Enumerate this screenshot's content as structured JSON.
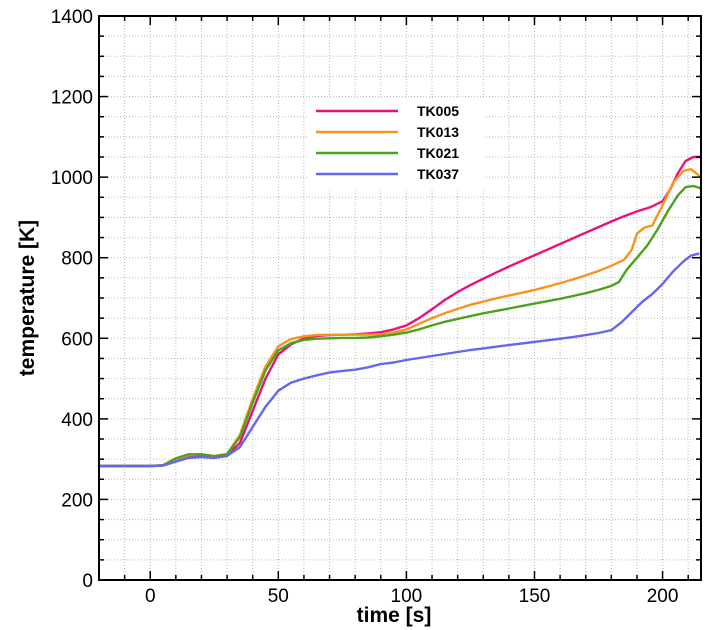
{
  "chart_data": {
    "type": "line",
    "xlabel": "time [s]",
    "ylabel": "temperature [K]",
    "xlim": [
      -20,
      215
    ],
    "ylim": [
      0,
      1400
    ],
    "x_ticks": [
      0,
      50,
      100,
      150,
      200
    ],
    "y_ticks": [
      0,
      200,
      400,
      600,
      800,
      1000,
      1200,
      1400
    ],
    "x_minor_step": 10,
    "y_minor_step": 50,
    "grid": true,
    "legend_position": "top-center",
    "series": [
      {
        "name": "TK005",
        "color": "#e8137a",
        "points": [
          [
            -20,
            283
          ],
          [
            0,
            283
          ],
          [
            5,
            284
          ],
          [
            10,
            295
          ],
          [
            15,
            305
          ],
          [
            20,
            307
          ],
          [
            25,
            305
          ],
          [
            30,
            310
          ],
          [
            35,
            340
          ],
          [
            40,
            420
          ],
          [
            45,
            500
          ],
          [
            50,
            560
          ],
          [
            55,
            585
          ],
          [
            60,
            600
          ],
          [
            65,
            606
          ],
          [
            70,
            608
          ],
          [
            75,
            609
          ],
          [
            80,
            610
          ],
          [
            85,
            612
          ],
          [
            90,
            615
          ],
          [
            95,
            622
          ],
          [
            100,
            632
          ],
          [
            105,
            650
          ],
          [
            110,
            672
          ],
          [
            115,
            695
          ],
          [
            120,
            715
          ],
          [
            125,
            732
          ],
          [
            130,
            748
          ],
          [
            135,
            763
          ],
          [
            140,
            778
          ],
          [
            145,
            792
          ],
          [
            150,
            806
          ],
          [
            155,
            820
          ],
          [
            160,
            834
          ],
          [
            165,
            848
          ],
          [
            170,
            862
          ],
          [
            175,
            876
          ],
          [
            180,
            890
          ],
          [
            185,
            903
          ],
          [
            190,
            915
          ],
          [
            195,
            925
          ],
          [
            200,
            940
          ],
          [
            203,
            970
          ],
          [
            206,
            1010
          ],
          [
            209,
            1040
          ],
          [
            212,
            1050
          ],
          [
            215,
            1050
          ]
        ]
      },
      {
        "name": "TK013",
        "color": "#f7941d",
        "points": [
          [
            -20,
            283
          ],
          [
            0,
            283
          ],
          [
            5,
            285
          ],
          [
            10,
            300
          ],
          [
            15,
            310
          ],
          [
            20,
            312
          ],
          [
            25,
            308
          ],
          [
            30,
            313
          ],
          [
            35,
            360
          ],
          [
            40,
            450
          ],
          [
            45,
            530
          ],
          [
            50,
            580
          ],
          [
            55,
            598
          ],
          [
            60,
            605
          ],
          [
            65,
            608
          ],
          [
            70,
            609
          ],
          [
            75,
            609
          ],
          [
            80,
            609
          ],
          [
            85,
            609
          ],
          [
            90,
            610
          ],
          [
            95,
            614
          ],
          [
            100,
            622
          ],
          [
            105,
            636
          ],
          [
            110,
            650
          ],
          [
            115,
            662
          ],
          [
            120,
            673
          ],
          [
            125,
            683
          ],
          [
            130,
            691
          ],
          [
            135,
            699
          ],
          [
            140,
            706
          ],
          [
            145,
            713
          ],
          [
            150,
            720
          ],
          [
            155,
            728
          ],
          [
            160,
            737
          ],
          [
            165,
            746
          ],
          [
            170,
            756
          ],
          [
            175,
            767
          ],
          [
            180,
            780
          ],
          [
            185,
            795
          ],
          [
            188,
            820
          ],
          [
            190,
            860
          ],
          [
            193,
            875
          ],
          [
            196,
            880
          ],
          [
            200,
            930
          ],
          [
            204,
            985
          ],
          [
            208,
            1015
          ],
          [
            211,
            1020
          ],
          [
            215,
            1000
          ]
        ]
      },
      {
        "name": "TK021",
        "color": "#4aa31c",
        "points": [
          [
            -20,
            283
          ],
          [
            0,
            283
          ],
          [
            5,
            285
          ],
          [
            10,
            302
          ],
          [
            15,
            312
          ],
          [
            20,
            312
          ],
          [
            25,
            307
          ],
          [
            30,
            312
          ],
          [
            35,
            355
          ],
          [
            40,
            440
          ],
          [
            45,
            520
          ],
          [
            50,
            570
          ],
          [
            55,
            588
          ],
          [
            60,
            596
          ],
          [
            65,
            599
          ],
          [
            70,
            600
          ],
          [
            75,
            601
          ],
          [
            80,
            601
          ],
          [
            85,
            602
          ],
          [
            90,
            605
          ],
          [
            95,
            609
          ],
          [
            100,
            614
          ],
          [
            105,
            622
          ],
          [
            110,
            632
          ],
          [
            115,
            641
          ],
          [
            120,
            648
          ],
          [
            125,
            655
          ],
          [
            130,
            662
          ],
          [
            135,
            668
          ],
          [
            140,
            674
          ],
          [
            145,
            680
          ],
          [
            150,
            686
          ],
          [
            155,
            692
          ],
          [
            160,
            698
          ],
          [
            165,
            705
          ],
          [
            170,
            712
          ],
          [
            175,
            720
          ],
          [
            180,
            730
          ],
          [
            183,
            740
          ],
          [
            186,
            770
          ],
          [
            190,
            800
          ],
          [
            194,
            830
          ],
          [
            198,
            870
          ],
          [
            202,
            915
          ],
          [
            206,
            955
          ],
          [
            209,
            975
          ],
          [
            212,
            978
          ],
          [
            215,
            972
          ]
        ]
      },
      {
        "name": "TK037",
        "color": "#6666ee",
        "points": [
          [
            -20,
            283
          ],
          [
            0,
            283
          ],
          [
            5,
            284
          ],
          [
            10,
            294
          ],
          [
            15,
            303
          ],
          [
            20,
            305
          ],
          [
            25,
            303
          ],
          [
            30,
            308
          ],
          [
            35,
            330
          ],
          [
            40,
            380
          ],
          [
            45,
            430
          ],
          [
            50,
            470
          ],
          [
            55,
            490
          ],
          [
            60,
            500
          ],
          [
            65,
            508
          ],
          [
            70,
            515
          ],
          [
            75,
            519
          ],
          [
            80,
            522
          ],
          [
            85,
            528
          ],
          [
            90,
            536
          ],
          [
            95,
            540
          ],
          [
            100,
            546
          ],
          [
            105,
            551
          ],
          [
            110,
            556
          ],
          [
            115,
            561
          ],
          [
            120,
            566
          ],
          [
            125,
            571
          ],
          [
            130,
            575
          ],
          [
            135,
            579
          ],
          [
            140,
            583
          ],
          [
            145,
            587
          ],
          [
            150,
            591
          ],
          [
            155,
            595
          ],
          [
            160,
            599
          ],
          [
            165,
            603
          ],
          [
            170,
            608
          ],
          [
            175,
            613
          ],
          [
            180,
            620
          ],
          [
            184,
            640
          ],
          [
            188,
            665
          ],
          [
            192,
            690
          ],
          [
            196,
            710
          ],
          [
            200,
            735
          ],
          [
            204,
            765
          ],
          [
            208,
            790
          ],
          [
            211,
            805
          ],
          [
            214,
            810
          ]
        ]
      }
    ]
  }
}
